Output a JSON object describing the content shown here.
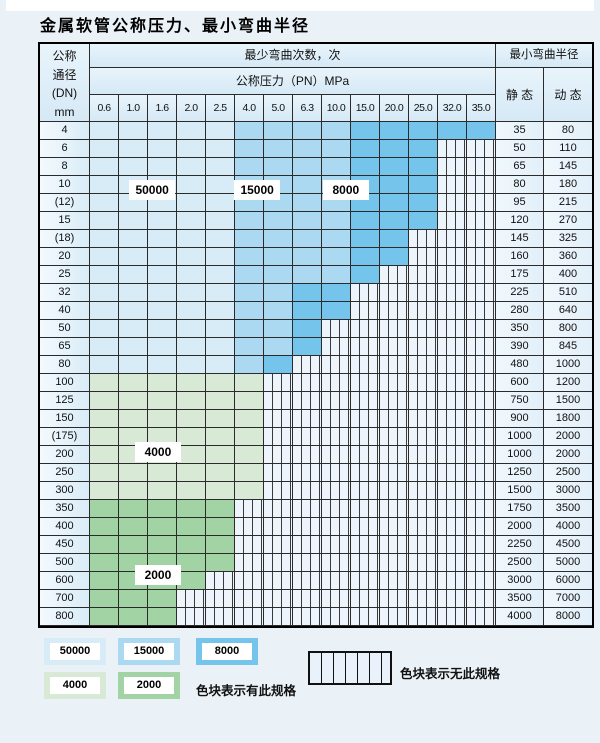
{
  "title": "金属软管公称压力、最小弯曲半径",
  "table": {
    "header": {
      "dn_label": "公称\n通径\n(DN)\nmm",
      "bend_cycles": "最少弯曲次数，次",
      "pressure": "公称压力（PN）MPa",
      "pressures": [
        "0.6",
        "1.0",
        "1.6",
        "2.0",
        "2.5",
        "4.0",
        "5.0",
        "6.3",
        "10.0",
        "15.0",
        "20.0",
        "25.0",
        "32.0",
        "35.0"
      ],
      "radius": "最小弯曲半径",
      "static": "静 态",
      "dynamic": "动 态"
    },
    "rows": [
      {
        "dn": "4",
        "static": "35",
        "dynamic": "80",
        "bands": [
          {
            "s": "b1",
            "to": 5
          },
          {
            "s": "b2",
            "to": 9
          },
          {
            "s": "b3",
            "to": 14
          }
        ]
      },
      {
        "dn": "6",
        "static": "50",
        "dynamic": "110",
        "bands": [
          {
            "s": "b1",
            "to": 5
          },
          {
            "s": "b2",
            "to": 9
          },
          {
            "s": "b3",
            "to": 12
          }
        ]
      },
      {
        "dn": "8",
        "static": "65",
        "dynamic": "145",
        "bands": [
          {
            "s": "b1",
            "to": 5
          },
          {
            "s": "b2",
            "to": 9
          },
          {
            "s": "b3",
            "to": 12
          }
        ]
      },
      {
        "dn": "10",
        "static": "80",
        "dynamic": "180",
        "bands": [
          {
            "s": "b1",
            "to": 5
          },
          {
            "s": "b2",
            "to": 9
          },
          {
            "s": "b3",
            "to": 12
          }
        ]
      },
      {
        "dn": "(12)",
        "static": "95",
        "dynamic": "215",
        "bands": [
          {
            "s": "b1",
            "to": 5
          },
          {
            "s": "b2",
            "to": 9
          },
          {
            "s": "b3",
            "to": 12
          }
        ]
      },
      {
        "dn": "15",
        "static": "120",
        "dynamic": "270",
        "bands": [
          {
            "s": "b1",
            "to": 5
          },
          {
            "s": "b2",
            "to": 9
          },
          {
            "s": "b3",
            "to": 12
          }
        ]
      },
      {
        "dn": "(18)",
        "static": "145",
        "dynamic": "325",
        "bands": [
          {
            "s": "b1",
            "to": 5
          },
          {
            "s": "b2",
            "to": 9
          },
          {
            "s": "b3",
            "to": 11
          }
        ]
      },
      {
        "dn": "20",
        "static": "160",
        "dynamic": "360",
        "bands": [
          {
            "s": "b1",
            "to": 5
          },
          {
            "s": "b2",
            "to": 9
          },
          {
            "s": "b3",
            "to": 11
          }
        ]
      },
      {
        "dn": "25",
        "static": "175",
        "dynamic": "400",
        "bands": [
          {
            "s": "b1",
            "to": 5
          },
          {
            "s": "b2",
            "to": 9
          },
          {
            "s": "b3",
            "to": 10
          }
        ]
      },
      {
        "dn": "32",
        "static": "225",
        "dynamic": "510",
        "bands": [
          {
            "s": "b1",
            "to": 5
          },
          {
            "s": "b2",
            "to": 7
          },
          {
            "s": "b3",
            "to": 9
          }
        ]
      },
      {
        "dn": "40",
        "static": "280",
        "dynamic": "640",
        "bands": [
          {
            "s": "b1",
            "to": 5
          },
          {
            "s": "b2",
            "to": 7
          },
          {
            "s": "b3",
            "to": 9
          }
        ]
      },
      {
        "dn": "50",
        "static": "350",
        "dynamic": "800",
        "bands": [
          {
            "s": "b1",
            "to": 5
          },
          {
            "s": "b2",
            "to": 7
          },
          {
            "s": "b3",
            "to": 8
          }
        ]
      },
      {
        "dn": "65",
        "static": "390",
        "dynamic": "845",
        "bands": [
          {
            "s": "b1",
            "to": 5
          },
          {
            "s": "b2",
            "to": 7
          },
          {
            "s": "b3",
            "to": 8
          }
        ]
      },
      {
        "dn": "80",
        "static": "480",
        "dynamic": "1000",
        "bands": [
          {
            "s": "b1",
            "to": 5
          },
          {
            "s": "b2",
            "to": 6
          },
          {
            "s": "b3",
            "to": 7
          }
        ]
      },
      {
        "dn": "100",
        "static": "600",
        "dynamic": "1200",
        "bands": [
          {
            "s": "g1",
            "to": 6
          }
        ]
      },
      {
        "dn": "125",
        "static": "750",
        "dynamic": "1500",
        "bands": [
          {
            "s": "g1",
            "to": 6
          }
        ]
      },
      {
        "dn": "150",
        "static": "900",
        "dynamic": "1800",
        "bands": [
          {
            "s": "g1",
            "to": 6
          }
        ]
      },
      {
        "dn": "(175)",
        "static": "1000",
        "dynamic": "2000",
        "bands": [
          {
            "s": "g1",
            "to": 6
          }
        ]
      },
      {
        "dn": "200",
        "static": "1000",
        "dynamic": "2000",
        "bands": [
          {
            "s": "g1",
            "to": 6
          }
        ]
      },
      {
        "dn": "250",
        "static": "1250",
        "dynamic": "2500",
        "bands": [
          {
            "s": "g1",
            "to": 6
          }
        ]
      },
      {
        "dn": "300",
        "static": "1500",
        "dynamic": "3000",
        "bands": [
          {
            "s": "g1",
            "to": 6
          }
        ]
      },
      {
        "dn": "350",
        "static": "1750",
        "dynamic": "3500",
        "bands": [
          {
            "s": "g2",
            "to": 5
          }
        ]
      },
      {
        "dn": "400",
        "static": "2000",
        "dynamic": "4000",
        "bands": [
          {
            "s": "g2",
            "to": 5
          }
        ]
      },
      {
        "dn": "450",
        "static": "2250",
        "dynamic": "4500",
        "bands": [
          {
            "s": "g2",
            "to": 5
          }
        ]
      },
      {
        "dn": "500",
        "static": "2500",
        "dynamic": "5000",
        "bands": [
          {
            "s": "g2",
            "to": 5
          }
        ]
      },
      {
        "dn": "600",
        "static": "3000",
        "dynamic": "6000",
        "bands": [
          {
            "s": "g2",
            "to": 4
          }
        ]
      },
      {
        "dn": "700",
        "static": "3500",
        "dynamic": "7000",
        "bands": [
          {
            "s": "g2",
            "to": 3
          }
        ]
      },
      {
        "dn": "800",
        "static": "4000",
        "dynamic": "8000",
        "bands": [
          {
            "s": "g2",
            "to": 3
          }
        ]
      }
    ],
    "overlays": [
      {
        "text": "50000",
        "col_f": 1.35,
        "row_f": 3.2
      },
      {
        "text": "15000",
        "col_f": 4.97,
        "row_f": 3.2
      },
      {
        "text": "8000",
        "col_f": 8.03,
        "row_f": 3.2
      },
      {
        "text": "4000",
        "col_f": 1.55,
        "row_f": 17.8
      },
      {
        "text": "2000",
        "col_f": 1.55,
        "row_f": 24.6
      }
    ]
  },
  "legend": {
    "items": [
      {
        "value": "50000",
        "shade": "b1"
      },
      {
        "value": "15000",
        "shade": "b2"
      },
      {
        "value": "8000",
        "shade": "b3"
      },
      {
        "value": "4000",
        "shade": "g1"
      },
      {
        "value": "2000",
        "shade": "g2"
      }
    ],
    "has_spec": "色块表示有此规格",
    "no_spec": "色块表示无此规格"
  },
  "colors": {
    "b1": "#d8ecf8",
    "b2": "#abd9f2",
    "b3": "#74c4ec",
    "g1": "#d8e9d6",
    "g2": "#a1d3a5",
    "hatch_bg": "#edf4fb",
    "grid": "#2b2b2b",
    "page_bg": "#eaf1f7"
  }
}
